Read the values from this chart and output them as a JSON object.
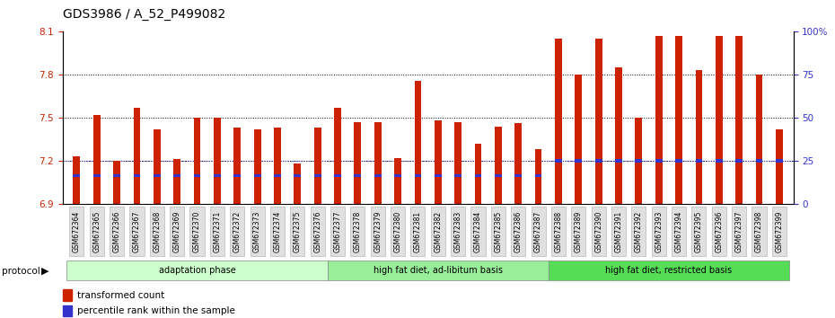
{
  "title": "GDS3986 / A_52_P499082",
  "categories": [
    "GSM672364",
    "GSM672365",
    "GSM672366",
    "GSM672367",
    "GSM672368",
    "GSM672369",
    "GSM672370",
    "GSM672371",
    "GSM672372",
    "GSM672373",
    "GSM672374",
    "GSM672375",
    "GSM672376",
    "GSM672377",
    "GSM672378",
    "GSM672379",
    "GSM672380",
    "GSM672381",
    "GSM672382",
    "GSM672383",
    "GSM672384",
    "GSM672385",
    "GSM672386",
    "GSM672387",
    "GSM672388",
    "GSM672389",
    "GSM672390",
    "GSM672391",
    "GSM672392",
    "GSM672393",
    "GSM672394",
    "GSM672395",
    "GSM672396",
    "GSM672397",
    "GSM672398",
    "GSM672399"
  ],
  "bar_tops": [
    7.23,
    7.52,
    7.2,
    7.57,
    7.42,
    7.21,
    7.5,
    7.5,
    7.43,
    7.42,
    7.43,
    7.18,
    7.43,
    7.57,
    7.47,
    7.47,
    7.22,
    7.76,
    7.48,
    7.47,
    7.32,
    7.44,
    7.46,
    7.28,
    8.05,
    7.8,
    8.05,
    7.85,
    7.5,
    8.07,
    8.07,
    7.83,
    8.07,
    8.07,
    7.8,
    7.42
  ],
  "blue_markers": [
    7.095,
    7.095,
    7.095,
    7.095,
    7.095,
    7.095,
    7.095,
    7.095,
    7.095,
    7.095,
    7.095,
    7.095,
    7.095,
    7.095,
    7.095,
    7.095,
    7.095,
    7.095,
    7.095,
    7.095,
    7.095,
    7.095,
    7.095,
    7.095,
    7.2,
    7.2,
    7.2,
    7.2,
    7.2,
    7.2,
    7.2,
    7.2,
    7.2,
    7.2,
    7.2,
    7.2
  ],
  "y_min": 6.9,
  "y_max": 8.1,
  "y_ticks": [
    6.9,
    7.2,
    7.5,
    7.8,
    8.1
  ],
  "right_y_ticks": [
    0,
    25,
    50,
    75,
    100
  ],
  "right_y_labels": [
    "0",
    "25",
    "50",
    "75",
    "100%"
  ],
  "bar_color": "#cc2200",
  "blue_color": "#3333cc",
  "groups": [
    {
      "label": "adaptation phase",
      "start": 0,
      "end": 12,
      "color": "#ccffcc"
    },
    {
      "label": "high fat diet, ad-libitum basis",
      "start": 13,
      "end": 23,
      "color": "#99ee99"
    },
    {
      "label": "high fat diet, restricted basis",
      "start": 24,
      "end": 35,
      "color": "#55dd55"
    }
  ],
  "protocol_label": "protocol",
  "legend_items": [
    {
      "color": "#cc2200",
      "label": "transformed count"
    },
    {
      "color": "#3333cc",
      "label": "percentile rank within the sample"
    }
  ],
  "title_fontsize": 10,
  "bar_width": 0.35,
  "background_color": "#ffffff",
  "grid_lines": [
    7.2,
    7.5,
    7.8
  ],
  "dotted_blue_line": 7.2
}
